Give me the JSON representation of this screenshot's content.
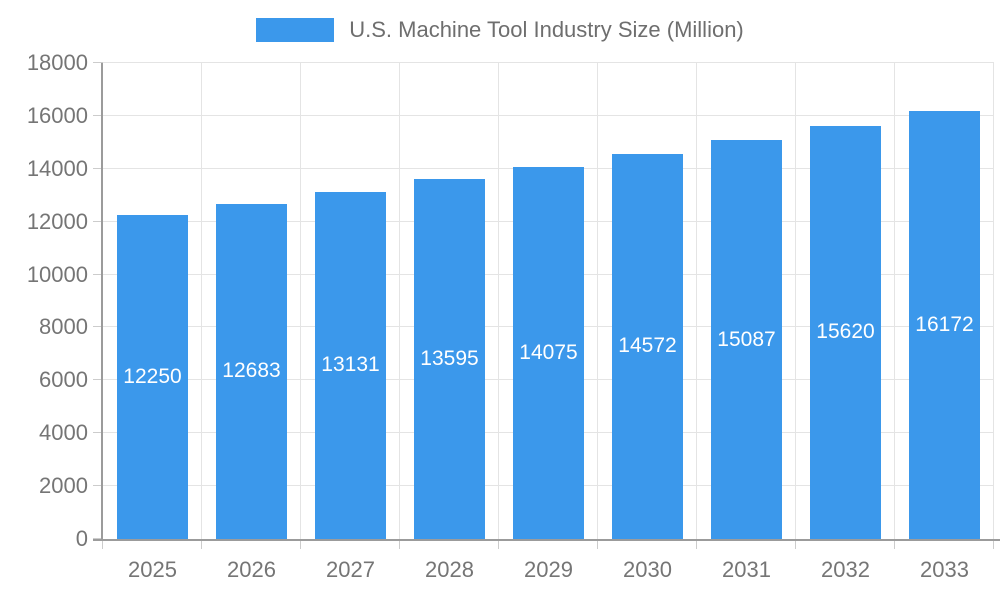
{
  "chart_data": {
    "type": "bar",
    "title": "U.S. Machine Tool Industry Size (Million)",
    "categories": [
      "2025",
      "2026",
      "2027",
      "2028",
      "2029",
      "2030",
      "2031",
      "2032",
      "2033"
    ],
    "values": [
      12250,
      12683,
      13131,
      13595,
      14075,
      14572,
      15087,
      15620,
      16172
    ],
    "xlabel": "",
    "ylabel": "",
    "ylim": [
      0,
      18000
    ],
    "ytick_step": 2000,
    "grid": true,
    "legend_position": "top-center",
    "bar_color": "#3b98eb",
    "bar_label_color": "#ffffff",
    "axis_text_color": "#757575",
    "gridline_color": "#e4e4e4",
    "axis_line_color": "#9b9b9b"
  },
  "legend": {
    "label": "U.S. Machine Tool Industry Size (Million)"
  }
}
